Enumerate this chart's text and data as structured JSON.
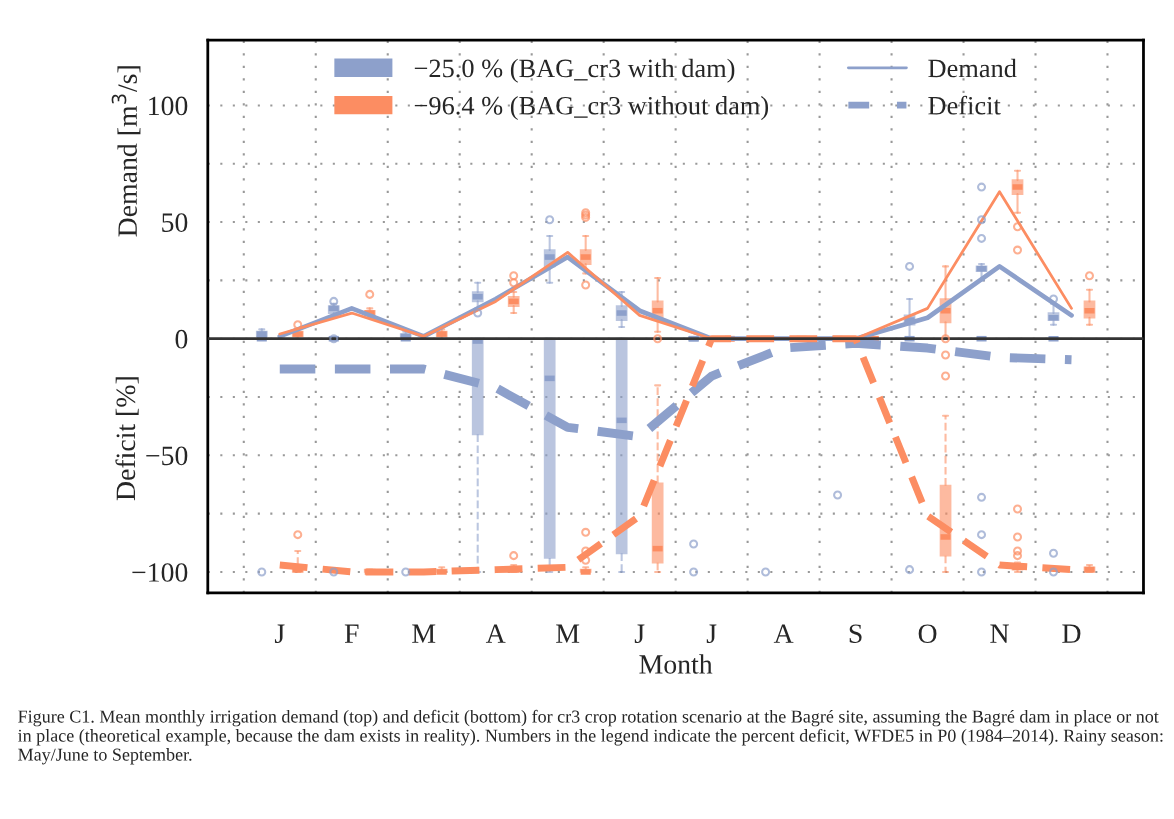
{
  "chart_data": {
    "type": "box",
    "categories": [
      "J",
      "F",
      "M",
      "A",
      "M",
      "J",
      "J",
      "A",
      "S",
      "O",
      "N",
      "D"
    ],
    "xlabel": "Month",
    "ylabel": [
      "Demand [m$^{3}$/s]",
      "Deficit [%]"
    ],
    "ylim": [
      -109,
      128
    ],
    "yticks": [
      {
        "value": -100,
        "label": "−100"
      },
      {
        "value": -75,
        "label": null
      },
      {
        "value": -50,
        "label": "−50"
      },
      {
        "value": -25,
        "label": null
      },
      0,
      {
        "value": 25,
        "label": null
      },
      50,
      {
        "value": 75,
        "label": null
      },
      100
    ],
    "grid": true,
    "legend": "top",
    "ref_lines": [
      {
        "axis": "y",
        "value": 0,
        "color": "#333333",
        "line_style": "solid"
      }
    ],
    "annotations": [
      "Figure C1. Mean monthly irrigation demand (top) and deficit (bottom) for cr3 crop rotation scenario at the Bagré site, assuming the Bagré dam in place or not in place (theoretical example, because the dam exists in reality). Numbers in the legend indicate the percent deficit, WFDE5 in P0 (1984–2014). Rainy season: May/June to September."
    ],
    "series": [
      {
        "name": "−25.0 % (BAG_cr3 with dam)",
        "color": "#8da0cb",
        "line_style": "solid",
        "boxes": [
          {
            "low": 0,
            "q1": 1,
            "median": 2,
            "q3": 3,
            "high": 4
          },
          {
            "low": 9,
            "q1": 11,
            "median": 13,
            "q3": 14,
            "high": 15,
            "outliers": [
              16,
              0
            ]
          },
          {
            "low": 0,
            "q1": 1,
            "median": 1,
            "q3": 2,
            "high": 3
          },
          {
            "low": 13,
            "q1": 16,
            "median": 18,
            "q3": 20,
            "high": 24,
            "outliers": [
              11
            ]
          },
          {
            "low": 24,
            "q1": 31,
            "median": 35,
            "q3": 38,
            "high": 44,
            "outliers": [
              51
            ]
          },
          {
            "low": 5,
            "q1": 8,
            "median": 11,
            "q3": 14,
            "high": 20
          },
          {
            "low": 0,
            "q1": 0,
            "median": 0,
            "q3": 0,
            "high": 0
          },
          {
            "low": 0,
            "q1": 0,
            "median": 0,
            "q3": 0,
            "high": 0
          },
          {
            "low": 0,
            "q1": 0,
            "median": 0,
            "q3": 0,
            "high": 0
          },
          {
            "low": 0,
            "q1": 6,
            "median": 8,
            "q3": 10,
            "high": 17,
            "outliers": [
              31
            ]
          },
          {
            "low": 25,
            "q1": 29,
            "median": 30,
            "q3": 31,
            "high": 32,
            "outliers": [
              65,
              51,
              43
            ]
          },
          {
            "low": 6,
            "q1": 8,
            "median": 9,
            "q3": 11,
            "high": 15,
            "outliers": [
              17
            ]
          }
        ]
      },
      {
        "name": "−96.4 % (BAG_cr3 without dam)",
        "color": "#fc8d62",
        "line_style": "solid",
        "boxes": [
          {
            "low": 0,
            "q1": 1,
            "median": 2,
            "q3": 3,
            "high": 4,
            "outliers": [
              6
            ]
          },
          {
            "low": 9,
            "q1": 10,
            "median": 11,
            "q3": 12,
            "high": 13,
            "outliers": [
              19
            ]
          },
          {
            "low": 0,
            "q1": 1,
            "median": 2,
            "q3": 3,
            "high": 4
          },
          {
            "low": 11,
            "q1": 14,
            "median": 16,
            "q3": 18,
            "high": 20,
            "outliers": [
              24,
              27
            ]
          },
          {
            "low": 28,
            "q1": 32,
            "median": 35,
            "q3": 38,
            "high": 44,
            "outliers": [
              54,
              53,
              52,
              23
            ]
          },
          {
            "low": 3,
            "q1": 8,
            "median": 12,
            "q3": 16,
            "high": 26,
            "outliers": [
              0
            ]
          },
          {
            "low": 0,
            "q1": 0,
            "median": 0,
            "q3": 0,
            "high": 0
          },
          {
            "low": 0,
            "q1": 0,
            "median": 0,
            "q3": 0,
            "high": 0
          },
          {
            "low": 0,
            "q1": 0,
            "median": 0,
            "q3": 0,
            "high": 0
          },
          {
            "low": 0,
            "q1": 7,
            "median": 12,
            "q3": 17,
            "high": 31
          },
          {
            "low": 54,
            "q1": 62,
            "median": 65,
            "q3": 68,
            "high": 72,
            "outliers": [
              48,
              38
            ]
          },
          {
            "low": 6,
            "q1": 9,
            "median": 12,
            "q3": 16,
            "high": 21,
            "outliers": [
              27
            ]
          }
        ]
      },
      {
        "color": "#8da0cb",
        "line_style": "dashed",
        "boxes": [
          {
            "low": 0,
            "q1": 0,
            "median": 0,
            "q3": 0,
            "high": 0,
            "outliers": [
              -100
            ]
          },
          {
            "low": 0,
            "q1": 0,
            "median": 0,
            "q3": 0,
            "high": 0,
            "outliers": [
              -100
            ]
          },
          {
            "low": 0,
            "q1": 0,
            "median": 0,
            "q3": 0,
            "high": 0,
            "outliers": [
              -100
            ]
          },
          {
            "low": -100,
            "q1": -41,
            "median": -1,
            "q3": 0,
            "high": 0
          },
          {
            "low": -100,
            "q1": -94,
            "median": -17,
            "q3": 0,
            "high": 0
          },
          {
            "low": -100,
            "q1": -92,
            "median": -35,
            "q3": 0,
            "high": 0
          },
          {
            "low": 0,
            "q1": 0,
            "median": 0,
            "q3": 0,
            "high": 0,
            "outliers": [
              -88,
              -100
            ]
          },
          {
            "low": 0,
            "q1": 0,
            "median": 0,
            "q3": 0,
            "high": 0,
            "outliers": [
              -100
            ]
          },
          {
            "low": 0,
            "q1": 0,
            "median": 0,
            "q3": 0,
            "high": 0,
            "outliers": [
              -67
            ]
          },
          {
            "low": 0,
            "q1": 0,
            "median": 0,
            "q3": 0,
            "high": 0,
            "outliers": [
              -99
            ]
          },
          {
            "low": 0,
            "q1": 0,
            "median": 0,
            "q3": 0,
            "high": 0,
            "outliers": [
              -68,
              -84,
              -100
            ]
          },
          {
            "low": 0,
            "q1": 0,
            "median": 0,
            "q3": 0,
            "high": 0,
            "outliers": [
              -92,
              -100
            ]
          }
        ]
      },
      {
        "color": "#fc8d62",
        "line_style": "dashed",
        "boxes": [
          {
            "low": -100,
            "q1": -100,
            "median": -99,
            "q3": -97,
            "high": -91,
            "outliers": [
              -84
            ]
          },
          {
            "low": -100,
            "q1": -100,
            "median": -100,
            "q3": -99,
            "high": -99
          },
          {
            "low": -100,
            "q1": -100,
            "median": -100,
            "q3": -99,
            "high": -98
          },
          {
            "low": -100,
            "q1": -100,
            "median": -99,
            "q3": -98,
            "high": -97,
            "outliers": [
              -93
            ]
          },
          {
            "low": -100,
            "q1": -100,
            "median": -100,
            "q3": -99,
            "high": -98,
            "outliers": [
              -83,
              -91,
              -95
            ]
          },
          {
            "low": -100,
            "q1": -96,
            "median": -90,
            "q3": -62,
            "high": -20
          },
          {
            "low": 0,
            "q1": 0,
            "median": 0,
            "q3": 0,
            "high": 0
          },
          {
            "low": 0,
            "q1": 0,
            "median": 0,
            "q3": 0,
            "high": 0
          },
          {
            "low": 0,
            "q1": 0,
            "median": 0,
            "q3": 0,
            "high": 0
          },
          {
            "low": -100,
            "q1": -93,
            "median": -85,
            "q3": -63,
            "high": -33,
            "outliers": [
              0,
              -7,
              -16
            ]
          },
          {
            "low": -100,
            "q1": -99,
            "median": -98,
            "q3": -97,
            "high": -96,
            "outliers": [
              -73,
              -85,
              -91,
              -93
            ]
          },
          {
            "low": -100,
            "q1": -100,
            "median": -99,
            "q3": -98,
            "high": -97
          }
        ]
      },
      {
        "type": "line",
        "name": "Demand",
        "color": "#8da0cb",
        "line_style": "solid",
        "values": [
          1,
          13,
          1,
          17,
          35,
          12,
          0,
          0,
          0,
          9,
          31,
          10
        ]
      },
      {
        "type": "line",
        "color": "#fc8d62",
        "line_style": "solid",
        "values": [
          2,
          11,
          1,
          16,
          37,
          10,
          0,
          0,
          0,
          13,
          63,
          13
        ]
      },
      {
        "type": "line",
        "name": "Deficit",
        "color": "#8da0cb",
        "line_style": "dashed",
        "values": [
          -13,
          -13,
          -13,
          -21,
          -38,
          -42,
          -16,
          -4,
          -2,
          -4,
          -8,
          -9
        ]
      },
      {
        "type": "line",
        "color": "#fc8d62",
        "line_style": "dashed",
        "values": [
          -97,
          -100,
          -100,
          -99,
          -98,
          -76,
          0,
          0,
          0,
          -76,
          -97,
          -99
        ]
      }
    ]
  }
}
